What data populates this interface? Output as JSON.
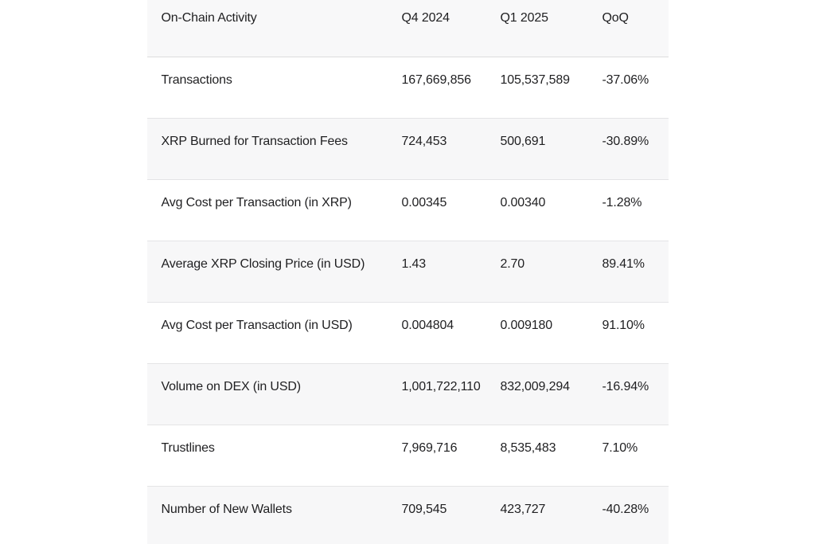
{
  "chart_data": {
    "type": "table",
    "title": "On-Chain Activity",
    "columns": [
      "On-Chain Activity",
      "Q4 2024",
      "Q1 2025",
      "QoQ"
    ],
    "rows": [
      {
        "label": "Transactions",
        "q4_2024": "167,669,856",
        "q1_2025": "105,537,589",
        "qoq": "-37.06%"
      },
      {
        "label": "XRP Burned for Transaction Fees",
        "q4_2024": "724,453",
        "q1_2025": "500,691",
        "qoq": "-30.89%"
      },
      {
        "label": "Avg Cost per Transaction (in XRP)",
        "q4_2024": "0.00345",
        "q1_2025": "0.00340",
        "qoq": "-1.28%"
      },
      {
        "label": "Average XRP Closing Price (in USD)",
        "q4_2024": "1.43",
        "q1_2025": "2.70",
        "qoq": "89.41%"
      },
      {
        "label": "Avg Cost per Transaction (in USD)",
        "q4_2024": "0.004804",
        "q1_2025": "0.009180",
        "qoq": "91.10%"
      },
      {
        "label": "Volume on DEX (in USD)",
        "q4_2024": "1,001,722,110",
        "q1_2025": "832,009,294",
        "qoq": "-16.94%"
      },
      {
        "label": "Trustlines",
        "q4_2024": "7,969,716",
        "q1_2025": "8,535,483",
        "qoq": "7.10%"
      },
      {
        "label": "Number of New Wallets",
        "q4_2024": "709,545",
        "q1_2025": "423,727",
        "qoq": "-40.28%"
      }
    ],
    "layout": {
      "legend": "none",
      "grid": "horizontal-row-separators",
      "striped_rows": true
    }
  },
  "colors": {
    "page_background": "#ffffff",
    "stripe_background": "#f7f7f8",
    "header_background": "#f8f8f9",
    "separator": "#e4e4e6",
    "header_separator": "#dcdcde",
    "text": "#1f1f21"
  }
}
